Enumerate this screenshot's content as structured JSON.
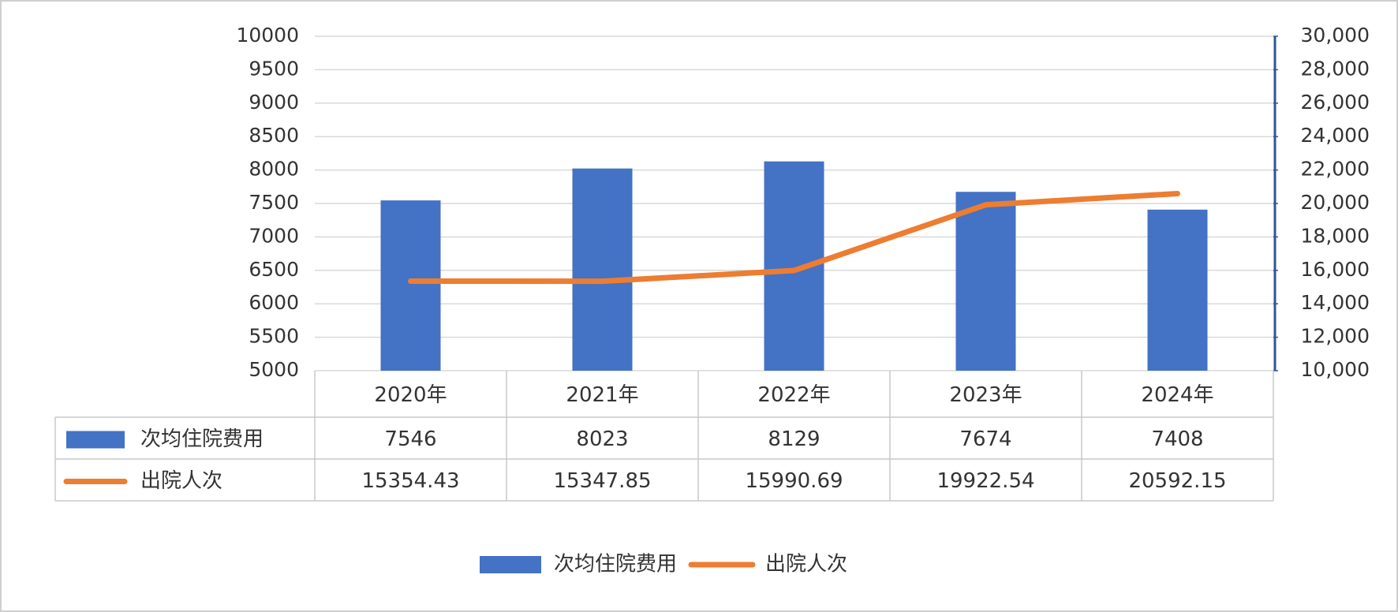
{
  "chart_data": {
    "type": "bar",
    "categories": [
      "2020年",
      "2021年",
      "2022年",
      "2023年",
      "2024年"
    ],
    "series": [
      {
        "name": "次均住院费用",
        "color": "#4472c4",
        "type": "bar",
        "values": [
          7546,
          8023,
          8129,
          7674,
          7408
        ]
      },
      {
        "name": "出院人次",
        "color": "#ed7d31",
        "type": "line",
        "axis": "y2",
        "values": [
          15354.43,
          15347.85,
          15990.69,
          19922.54,
          20592.15
        ]
      }
    ],
    "ylim": [
      5000,
      10000
    ],
    "yticks": [
      5000,
      5500,
      6000,
      6500,
      7000,
      7500,
      8000,
      8500,
      9000,
      9500,
      10000
    ],
    "y2lim": [
      10000,
      30000
    ],
    "y2ticks": [
      {
        "value": 10000,
        "label": "10,000"
      },
      {
        "value": 12000,
        "label": "12,000"
      },
      {
        "value": 14000,
        "label": "14,000"
      },
      {
        "value": 16000,
        "label": "16,000"
      },
      {
        "value": 18000,
        "label": "18,000"
      },
      {
        "value": 20000,
        "label": "20,000"
      },
      {
        "value": 22000,
        "label": "22,000"
      },
      {
        "value": 24000,
        "label": "24,000"
      },
      {
        "value": 26000,
        "label": "26,000"
      },
      {
        "value": 28000,
        "label": "28,000"
      },
      {
        "value": 30000,
        "label": "30,000"
      }
    ],
    "grid": true,
    "data_table": true,
    "legend": "bottom"
  }
}
